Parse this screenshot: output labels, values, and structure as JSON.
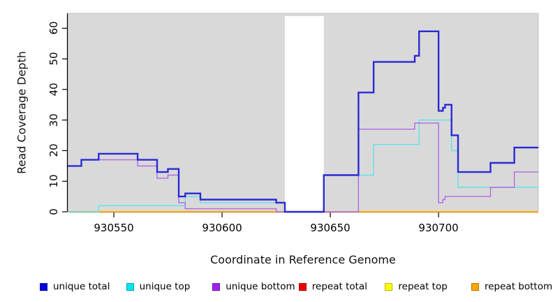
{
  "chart_data": {
    "type": "line",
    "subtype": "step",
    "title": "",
    "xlabel": "Coordinate in Reference Genome",
    "ylabel": "Read Coverage Depth",
    "xlim": [
      930528.7,
      930746.1
    ],
    "ylim": [
      0,
      64.9
    ],
    "x_ticks": [
      930550,
      930600,
      930650,
      930700
    ],
    "y_ticks": [
      0,
      10,
      20,
      30,
      40,
      50,
      60
    ],
    "grid": "off",
    "legend_position": "bottom",
    "plot_background": "#d9d9d9",
    "plot_border": "#c4c4c4",
    "axis_color": "#000000",
    "gap_region": {
      "x_start": 930629,
      "x_end": 930647,
      "fill": "#ffffff"
    },
    "series": [
      {
        "name": "repeat total",
        "swatch": "#ee0000",
        "line_color": "#dd2222",
        "line_width": 1.3,
        "points": [
          [
            930528.7,
            0
          ]
        ]
      },
      {
        "name": "repeat top",
        "swatch": "#ffff00",
        "line_color": "#f2e500",
        "line_width": 1.3,
        "points": [
          [
            930528.7,
            0
          ]
        ]
      },
      {
        "name": "repeat bottom",
        "swatch": "#ffa500",
        "line_color": "#ffa500",
        "line_width": 2,
        "points": [
          [
            930528.7,
            0
          ]
        ]
      },
      {
        "name": "unique top",
        "swatch": "#00e5ee",
        "line_color": "#5fe2ea",
        "line_width": 1.4,
        "points": [
          [
            930528.7,
            0
          ],
          [
            930543,
            2
          ],
          [
            930583,
            5
          ],
          [
            930590,
            3
          ],
          [
            930629,
            0
          ],
          [
            930647,
            12
          ],
          [
            930670,
            22
          ],
          [
            930691,
            30
          ],
          [
            930706,
            20
          ],
          [
            930709,
            8
          ]
        ]
      },
      {
        "name": "unique bottom",
        "swatch": "#a020f0",
        "line_color": "#b168e5",
        "line_width": 1.4,
        "points": [
          [
            930528.7,
            15
          ],
          [
            930535,
            17
          ],
          [
            930561,
            15
          ],
          [
            930570,
            11
          ],
          [
            930575,
            12
          ],
          [
            930580,
            3
          ],
          [
            930583,
            1
          ],
          [
            930625,
            0
          ],
          [
            930663,
            27
          ],
          [
            930689,
            29
          ],
          [
            930700,
            3
          ],
          [
            930702,
            4
          ],
          [
            930703,
            5
          ],
          [
            930724,
            8
          ],
          [
            930735,
            13
          ]
        ]
      },
      {
        "name": "unique total",
        "swatch": "#0000e0",
        "line_color": "#2a2ad4",
        "line_width": 2.4,
        "points": [
          [
            930528.7,
            15
          ],
          [
            930535,
            17
          ],
          [
            930543,
            19
          ],
          [
            930561,
            17
          ],
          [
            930570,
            13
          ],
          [
            930575,
            14
          ],
          [
            930580,
            5
          ],
          [
            930583,
            6
          ],
          [
            930590,
            4
          ],
          [
            930625,
            3
          ],
          [
            930629,
            0
          ],
          [
            930647,
            12
          ],
          [
            930663,
            39
          ],
          [
            930670,
            49
          ],
          [
            930689,
            51
          ],
          [
            930691,
            59
          ],
          [
            930700,
            33
          ],
          [
            930702,
            34
          ],
          [
            930703,
            35
          ],
          [
            930706,
            25
          ],
          [
            930709,
            13
          ],
          [
            930724,
            16
          ],
          [
            930735,
            21
          ]
        ]
      }
    ],
    "legend_order": [
      "unique total",
      "unique top",
      "unique bottom",
      "repeat total",
      "repeat top",
      "repeat bottom"
    ]
  }
}
